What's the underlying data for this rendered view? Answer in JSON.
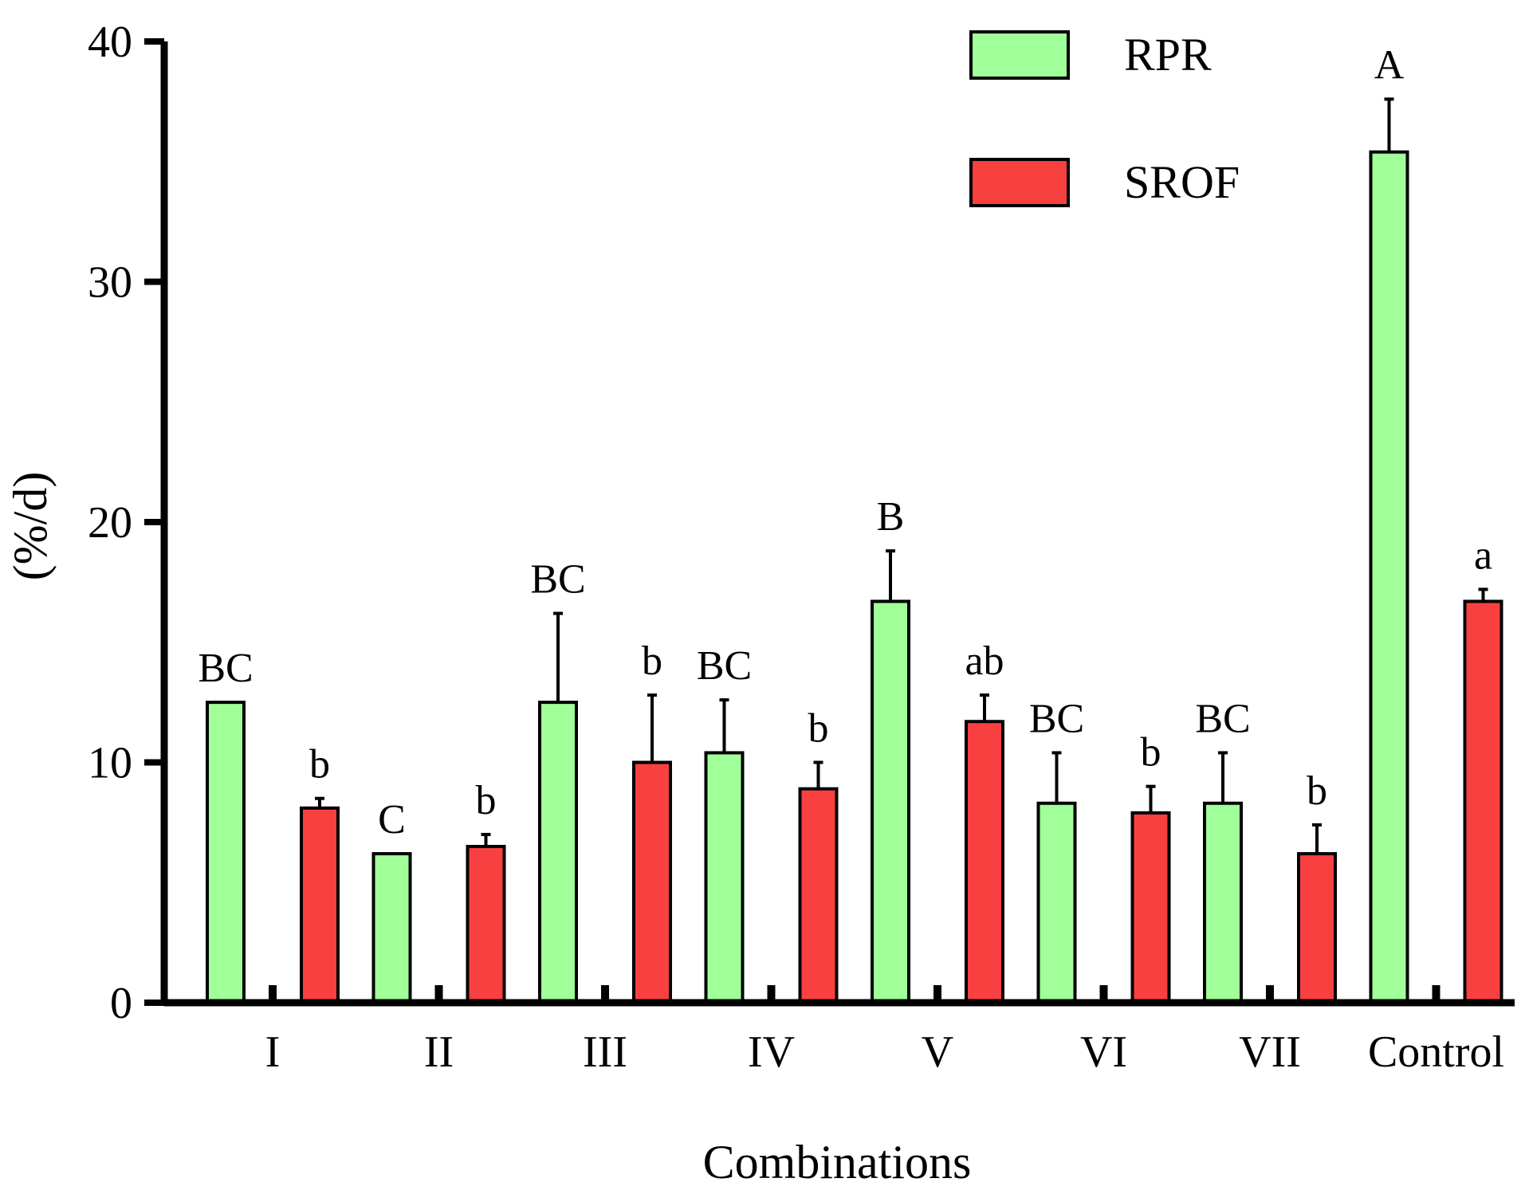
{
  "chart_data": {
    "type": "bar",
    "title": "",
    "xlabel": "Combinations",
    "ylabel": "(%/d)",
    "ylim": [
      0,
      40
    ],
    "yticks": [
      0,
      10,
      20,
      30,
      40
    ],
    "grid": false,
    "legend_position": "top-right",
    "categories": [
      "I",
      "II",
      "III",
      "IV",
      "V",
      "VI",
      "VII",
      "Control"
    ],
    "series": [
      {
        "name": "RPR",
        "color": "#a0ff98",
        "values": [
          12.5,
          6.2,
          12.5,
          10.4,
          16.7,
          8.3,
          8.3,
          35.4
        ],
        "errors": [
          0,
          0,
          3.7,
          2.2,
          2.1,
          2.1,
          2.1,
          2.2
        ],
        "labels": [
          "BC",
          "C",
          "BC",
          "BC",
          "B",
          "BC",
          "BC",
          "A"
        ]
      },
      {
        "name": "SROF",
        "color": "#f84040",
        "values": [
          8.1,
          6.5,
          10.0,
          8.9,
          11.7,
          7.9,
          6.2,
          16.7
        ],
        "errors": [
          0.4,
          0.5,
          2.8,
          1.1,
          1.1,
          1.1,
          1.2,
          0.5
        ],
        "labels": [
          "b",
          "b",
          "b",
          "b",
          "ab",
          "b",
          "b",
          "a"
        ]
      }
    ]
  }
}
